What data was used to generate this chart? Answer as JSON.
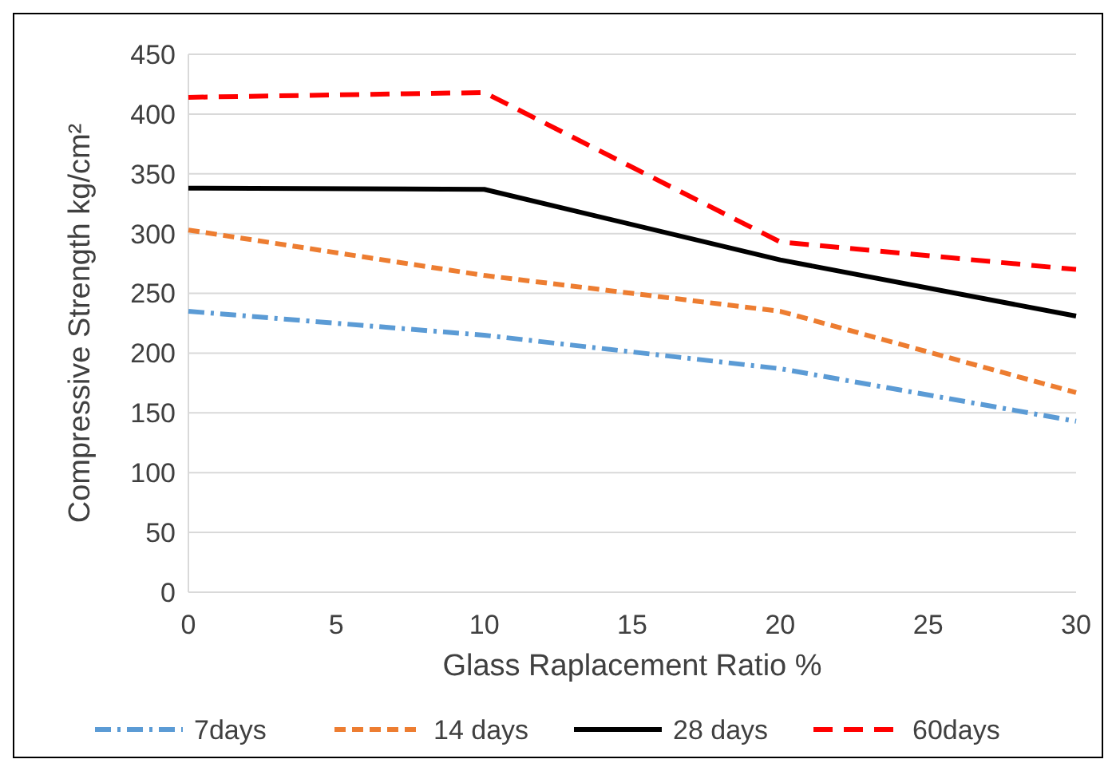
{
  "chart_data": {
    "type": "line",
    "xlabel": "Glass Raplacement Ratio %",
    "ylabel": "Compressive Strength kg/cm²",
    "x": [
      0,
      10,
      20,
      30
    ],
    "xlim": [
      0,
      30
    ],
    "xticks": [
      0,
      5,
      10,
      15,
      20,
      25,
      30
    ],
    "ylim": [
      0,
      450
    ],
    "yticks": [
      0,
      50,
      100,
      150,
      200,
      250,
      300,
      350,
      400,
      450
    ],
    "grid": "y",
    "legend": "bottom",
    "marker": "none",
    "series": [
      {
        "name": "7days",
        "color": "#5b9bd5",
        "line_style": "dashdot",
        "values": [
          235,
          215,
          187,
          143
        ]
      },
      {
        "name": "14 days",
        "color": "#ed7d31",
        "line_style": "dashed",
        "values": [
          303,
          265,
          235,
          167
        ]
      },
      {
        "name": "28 days",
        "color": "#000000",
        "line_style": "solid",
        "values": [
          338,
          337,
          278,
          231
        ]
      },
      {
        "name": "60days",
        "color": "#ff0000",
        "line_style": "longdash",
        "values": [
          414,
          418,
          293,
          270
        ]
      }
    ]
  }
}
